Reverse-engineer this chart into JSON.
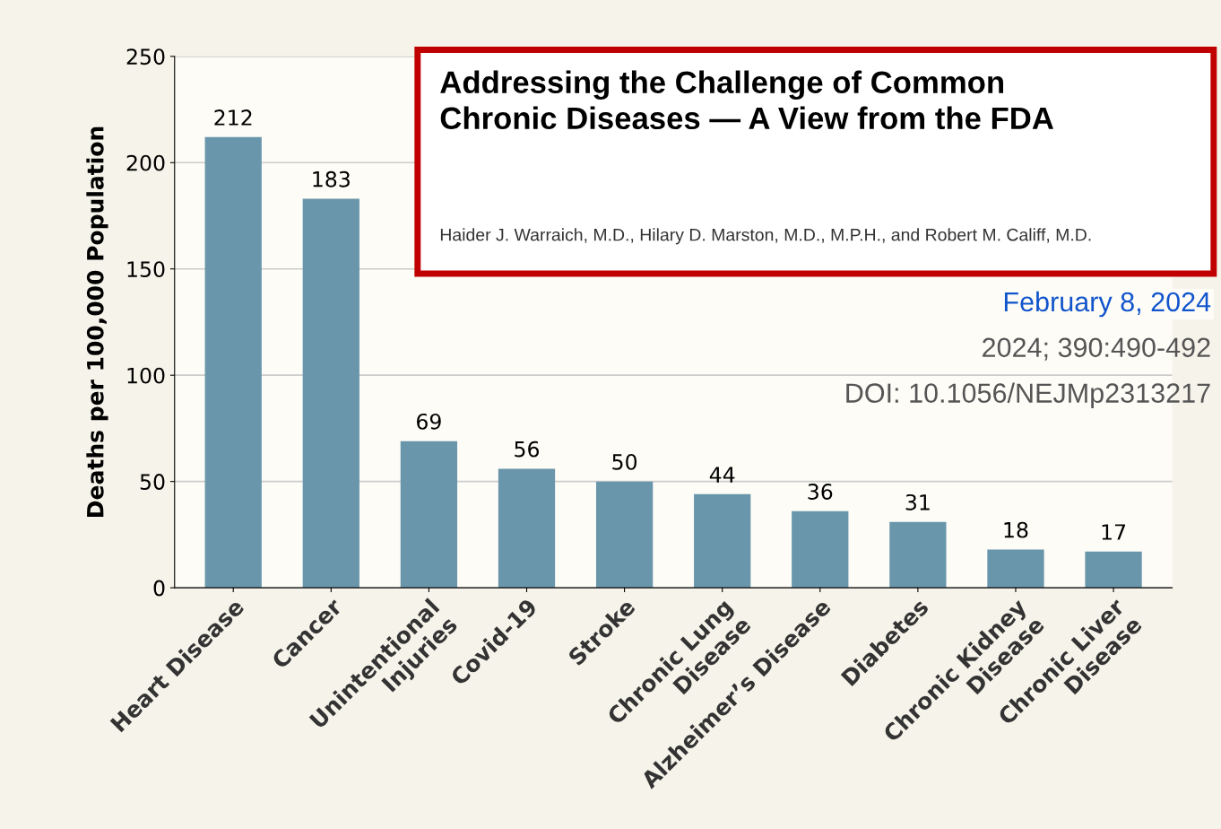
{
  "chart_data": {
    "type": "bar",
    "title": "Addressing the Challenge of Common\nChronic Diseases — A View from the FDA",
    "subtitle": "Haider J. Warraich, M.D., Hilary D. Marston, M.D., M.P.H., and Robert M. Califf, M.D.",
    "annotations": [
      "February 8, 2024",
      "2024; 390:490-492",
      "DOI: 10.1056/NEJMp2313217"
    ],
    "ylabel": "Deaths per 100,000 Population",
    "categories": [
      "Heart Disease",
      "Cancer",
      "Unintentional\nInjuries",
      "Covid-19",
      "Stroke",
      "Chronic Lung\nDisease",
      "Alzheimer’s Disease",
      "Diabetes",
      "Chronic Kidney\nDisease",
      "Chronic Liver\nDisease"
    ],
    "values": [
      212,
      183,
      69,
      56,
      50,
      44,
      36,
      31,
      18,
      17
    ],
    "color": "#6a96ab",
    "data_labels": true,
    "ylim": [
      0,
      250
    ],
    "yticks": [
      0,
      50,
      100,
      150,
      200,
      250
    ],
    "grid": "y"
  }
}
